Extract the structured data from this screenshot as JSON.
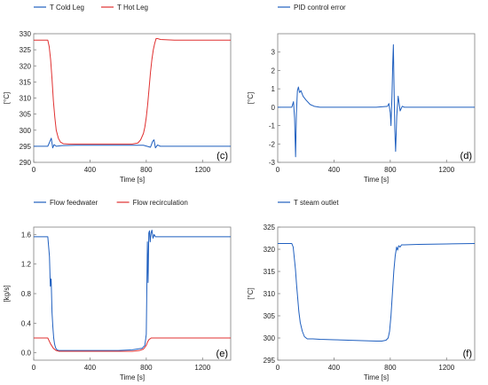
{
  "chart_data": [
    {
      "panel_id": "c",
      "panel_label": "(c)",
      "type": "line",
      "xlabel": "Time [s]",
      "ylabel": "[°C]",
      "xlim": [
        0,
        1400
      ],
      "ylim": [
        290,
        330
      ],
      "xticks": [
        0,
        400,
        800,
        1200
      ],
      "yticks": [
        290,
        295,
        300,
        305,
        310,
        315,
        320,
        325,
        330
      ],
      "grid": false,
      "legend_placement": "top-left",
      "series": [
        {
          "name": "T Cold Leg",
          "color": "#1f5fbf",
          "x": [
            0,
            100,
            115,
            125,
            135,
            145,
            160,
            200,
            300,
            400,
            500,
            600,
            700,
            780,
            830,
            845,
            855,
            865,
            880,
            900,
            1000,
            1200,
            1400
          ],
          "y": [
            295,
            295,
            296.5,
            297.5,
            294.5,
            295.5,
            295,
            295.2,
            295.3,
            295.3,
            295.3,
            295.3,
            295.3,
            295.3,
            294.7,
            296.5,
            297,
            294.5,
            295.4,
            295,
            295,
            295,
            295
          ]
        },
        {
          "name": "T Hot Leg",
          "color": "#e03030",
          "x": [
            0,
            100,
            110,
            120,
            130,
            140,
            150,
            160,
            175,
            190,
            210,
            250,
            300,
            400,
            500,
            600,
            700,
            740,
            760,
            780,
            790,
            800,
            810,
            820,
            830,
            840,
            850,
            860,
            870,
            880,
            900,
            1000,
            1200,
            1400
          ],
          "y": [
            328,
            328,
            326,
            322,
            316,
            309,
            304,
            300,
            297.5,
            296.3,
            295.8,
            295.7,
            295.7,
            295.7,
            295.7,
            295.7,
            295.7,
            296,
            297,
            299,
            301,
            304,
            308,
            313,
            318,
            322,
            325,
            327,
            328.5,
            328.5,
            328.2,
            328,
            328,
            328
          ]
        }
      ]
    },
    {
      "panel_id": "d",
      "panel_label": "(d)",
      "type": "line",
      "xlabel": "Time [s]",
      "ylabel": "[°C]",
      "xlim": [
        0,
        1400
      ],
      "ylim": [
        -3,
        4
      ],
      "xticks": [
        0,
        400,
        800,
        1200
      ],
      "yticks": [
        -3,
        -2,
        -1,
        0,
        1,
        2,
        3
      ],
      "grid": false,
      "legend_placement": "top-left",
      "series": [
        {
          "name": "PID control error",
          "color": "#1f5fbf",
          "x": [
            0,
            100,
            112,
            120,
            127,
            133,
            140,
            147,
            155,
            165,
            180,
            200,
            230,
            260,
            300,
            400,
            500,
            600,
            700,
            780,
            790,
            800,
            805,
            812,
            818,
            822,
            826,
            832,
            838,
            846,
            856,
            870,
            885,
            900,
            1000,
            1200,
            1400
          ],
          "y": [
            0,
            0,
            0.3,
            -0.6,
            -2.7,
            -0.3,
            0.9,
            1.1,
            0.8,
            0.9,
            0.6,
            0.4,
            0.15,
            0.05,
            0,
            0,
            0,
            0,
            0,
            0.05,
            0.2,
            -0.3,
            -1.0,
            0.6,
            2.5,
            3.4,
            1.5,
            -1.2,
            -2.4,
            -0.5,
            0.6,
            -0.2,
            0.05,
            0,
            0,
            0,
            0
          ]
        }
      ]
    },
    {
      "panel_id": "e",
      "panel_label": "(e)",
      "type": "line",
      "xlabel": "Time [s]",
      "ylabel": "[kg/s]",
      "xlim": [
        0,
        1400
      ],
      "ylim": [
        -0.1,
        1.7
      ],
      "xticks": [
        0,
        400,
        800,
        1200
      ],
      "yticks": [
        0.0,
        0.4,
        0.8,
        1.2,
        1.6
      ],
      "grid": false,
      "legend_placement": "top-left",
      "series": [
        {
          "name": "Flow feedwater",
          "color": "#1f5fbf",
          "x": [
            0,
            100,
            112,
            118,
            124,
            130,
            136,
            142,
            148,
            155,
            165,
            180,
            200,
            250,
            300,
            400,
            500,
            600,
            700,
            770,
            790,
            800,
            808,
            813,
            818,
            823,
            828,
            834,
            840,
            848,
            856,
            865,
            880,
            900,
            1000,
            1200,
            1400
          ],
          "y": [
            1.57,
            1.57,
            1.3,
            0.9,
            1.0,
            0.55,
            0.35,
            0.2,
            0.12,
            0.07,
            0.04,
            0.03,
            0.03,
            0.03,
            0.03,
            0.03,
            0.03,
            0.03,
            0.04,
            0.06,
            0.1,
            0.25,
            1.5,
            0.95,
            1.62,
            1.65,
            1.5,
            1.62,
            1.66,
            1.55,
            1.6,
            1.57,
            1.57,
            1.57,
            1.57,
            1.57,
            1.57
          ]
        },
        {
          "name": "Flow recirculation",
          "color": "#e03030",
          "x": [
            0,
            100,
            120,
            140,
            160,
            180,
            200,
            250,
            300,
            400,
            500,
            600,
            700,
            750,
            780,
            800,
            810,
            820,
            835,
            850,
            900,
            1000,
            1200,
            1400
          ],
          "y": [
            0.2,
            0.2,
            0.12,
            0.06,
            0.03,
            0.02,
            0.02,
            0.02,
            0.02,
            0.02,
            0.02,
            0.02,
            0.02,
            0.03,
            0.05,
            0.1,
            0.15,
            0.18,
            0.2,
            0.2,
            0.2,
            0.2,
            0.2,
            0.2
          ]
        }
      ]
    },
    {
      "panel_id": "f",
      "panel_label": "(f)",
      "type": "line",
      "xlabel": "Time [s]",
      "ylabel": "[°C]",
      "xlim": [
        0,
        1400
      ],
      "ylim": [
        295,
        325
      ],
      "xticks": [
        0,
        400,
        800,
        1200
      ],
      "yticks": [
        295,
        300,
        305,
        310,
        315,
        320,
        325
      ],
      "grid": false,
      "legend_placement": "top-left",
      "series": [
        {
          "name": "T steam outlet",
          "color": "#1f5fbf",
          "x": [
            0,
            100,
            110,
            118,
            126,
            134,
            142,
            150,
            160,
            175,
            190,
            210,
            250,
            300,
            400,
            500,
            600,
            700,
            740,
            770,
            785,
            795,
            805,
            815,
            825,
            835,
            845,
            852,
            860,
            870,
            880,
            900,
            1000,
            1200,
            1400
          ],
          "y": [
            321.3,
            321.3,
            320.5,
            318,
            315.5,
            312,
            309,
            306,
            303.5,
            301.5,
            300.3,
            299.8,
            299.8,
            299.7,
            299.6,
            299.5,
            299.4,
            299.3,
            299.3,
            299.5,
            300,
            301.5,
            305,
            310,
            315,
            318.5,
            320.5,
            319.8,
            320.8,
            320.5,
            321,
            321,
            321.1,
            321.2,
            321.3
          ]
        }
      ]
    }
  ]
}
